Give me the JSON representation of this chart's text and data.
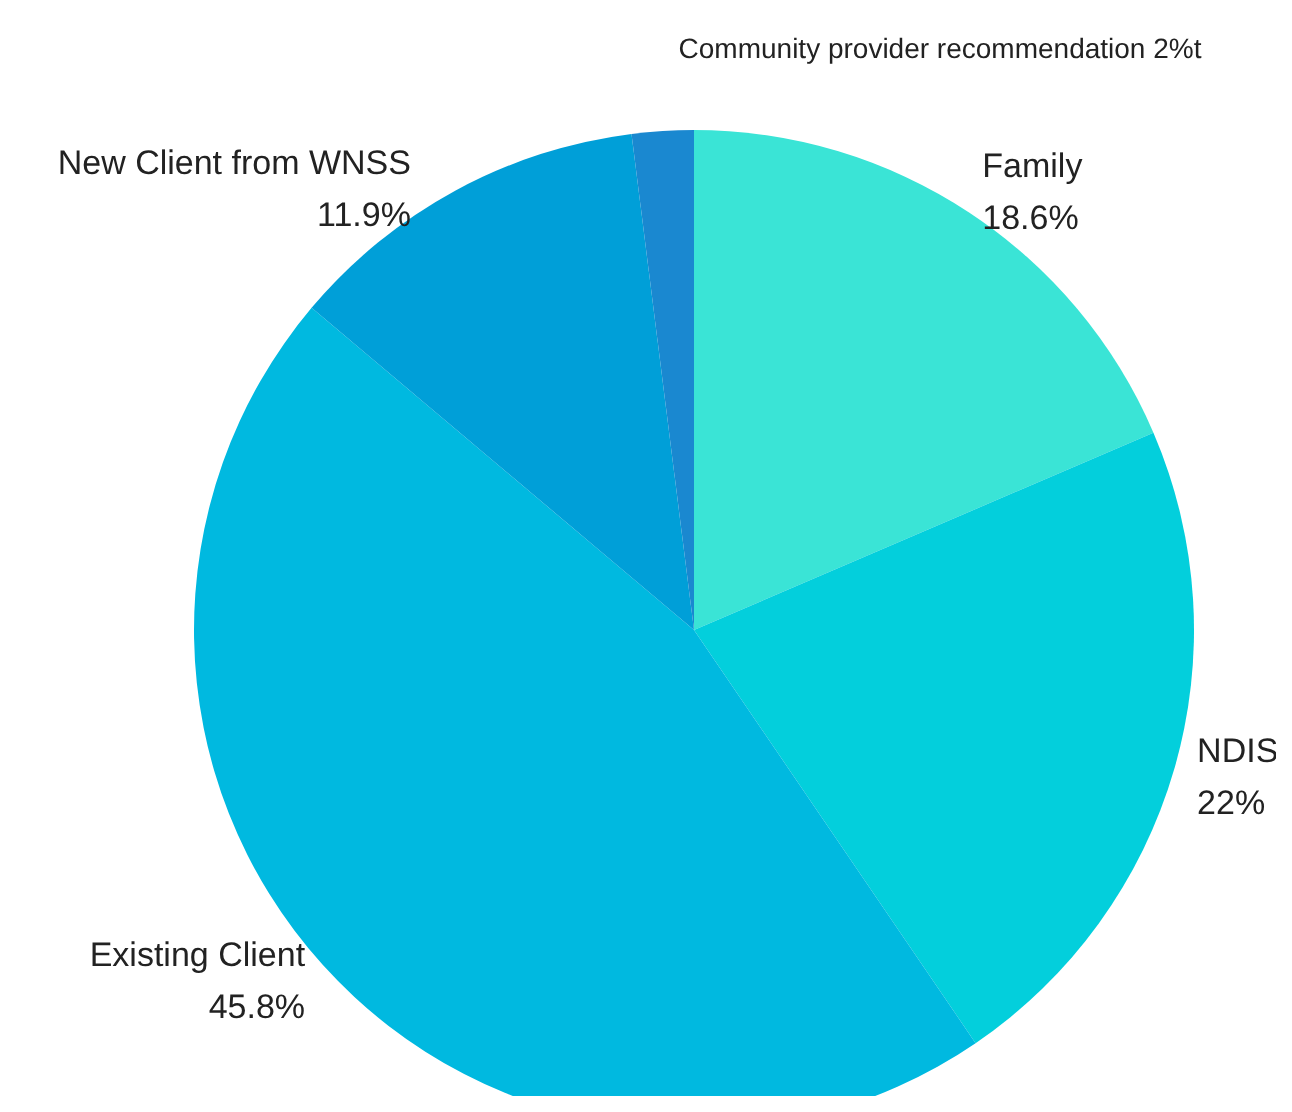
{
  "chart_data": {
    "type": "pie",
    "categories": [
      "Family",
      "NDIS",
      "Existing Client",
      "New Client from WNSS",
      "Community provider recommendation"
    ],
    "values": [
      18.6,
      22,
      45.8,
      11.9,
      2
    ],
    "value_labels": [
      "18.6%",
      "22%",
      "45.8%",
      "11.9%",
      "2%t"
    ],
    "colors": [
      "#3ae4d6",
      "#03cfdc",
      "#00b9e0",
      "#009fd8",
      "#1a88d0"
    ],
    "legend": false
  }
}
